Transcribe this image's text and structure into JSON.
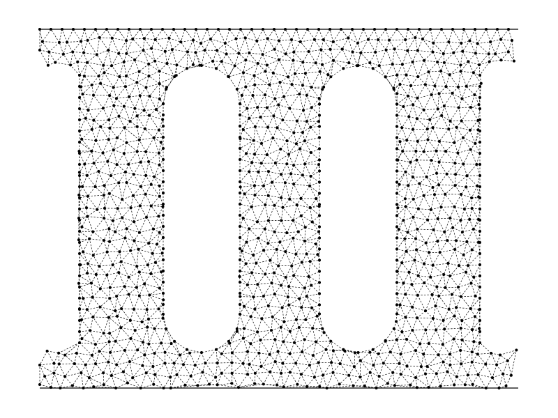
{
  "figure": {
    "kind": "triangular-mesh",
    "shape": "frame with top and bottom bars joined by three vertical pillars",
    "edge_style": "dashed",
    "node_style": "dot",
    "colors": {
      "background": "#ffffff",
      "edge": "#000000",
      "node": "#000000"
    }
  }
}
